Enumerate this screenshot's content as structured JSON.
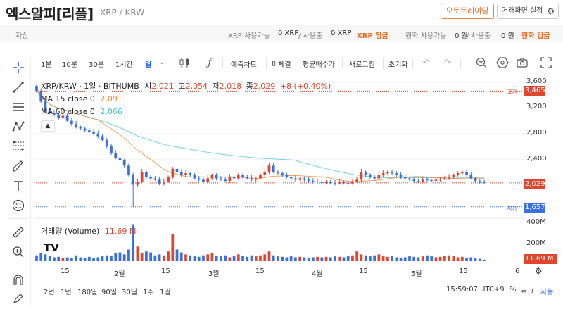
{
  "header": {
    "title": "엑스알피[리플]",
    "subtitle": "XRP / KRW",
    "auto_trade": "오토트레이딩",
    "screen_settings": "거래화면 설정"
  },
  "balance": {
    "label": "자산",
    "xrp_available_label": "XRP 사용가능",
    "xrp_available": "0 XRP",
    "in_use_label": "/ 사용중",
    "xrp_in_use": "0 XRP",
    "xrp_deposit": "XRP 입금",
    "krw_available_label": "원화 사용가능",
    "krw_available": "0 원",
    "krw_in_use_label": "/ 사용중",
    "krw_in_use": "0 원",
    "krw_deposit": "원화 입금"
  },
  "toolbar": {
    "intervals": [
      "1분",
      "10분",
      "30분",
      "1시간",
      "일"
    ],
    "active_interval": "일",
    "buttons": [
      "예측차트",
      "미체결",
      "평균매수가",
      "새로고침",
      "초기화"
    ]
  },
  "legend": {
    "symbol": "XRP/KRW · 1일 · BITHUMB",
    "open_label": "시",
    "open": "2,021",
    "high_label": "고",
    "high": "2,054",
    "low_label": "저",
    "low": "2,018",
    "close_label": "종",
    "close": "2,029",
    "change": "+8 (+0.40%)",
    "ma15_label": "MA 15 close 0",
    "ma15_value": "2,091",
    "ma60_label": "MA 60 close 0",
    "ma60_value": "2,066"
  },
  "volume": {
    "label": "거래량 (Volume)",
    "value": "11.69 M",
    "axis": [
      "400M",
      "200M"
    ],
    "tag": "11.69 M"
  },
  "yaxis": {
    "ticks": [
      "3,600",
      "3,200",
      "2,800",
      "2,400"
    ],
    "high_tag_label": "고가",
    "high_tag": "3,465",
    "current_tag": "2,029",
    "low_tag_label": "저가",
    "low_tag": "1,657"
  },
  "xaxis": {
    "ticks": [
      "15",
      "2월",
      "15",
      "3월",
      "15",
      "4월",
      "15",
      "5월",
      "15",
      "6"
    ]
  },
  "bottom": {
    "ranges": [
      "2년",
      "1년",
      "180일",
      "90일",
      "30일",
      "1주",
      "1일"
    ],
    "time": "15:59:07 UTC+9",
    "percent": "%",
    "log": "로그",
    "auto": "자동"
  },
  "colors": {
    "up": "#e0452d",
    "down": "#3a6fe0",
    "ma15": "#f08a3a",
    "ma60": "#37c0d8",
    "accent": "#2962ff",
    "orange": "#e8671f"
  },
  "chart_data": {
    "type": "candlestick",
    "title": "XRP/KRW · 1일 · BITHUMB",
    "ylim": [
      1500,
      3700
    ],
    "y_ticks": [
      2400,
      2800,
      3200,
      3600
    ],
    "x_ticks": [
      "15",
      "2월",
      "15",
      "3월",
      "15",
      "4월",
      "15",
      "5월",
      "15",
      "6"
    ],
    "closes": [
      3465,
      3300,
      3150,
      3120,
      3100,
      3050,
      3080,
      3000,
      2950,
      2900,
      2880,
      2850,
      2830,
      2800,
      2760,
      2700,
      2600,
      2500,
      2420,
      2380,
      2300,
      2150,
      2000,
      2050,
      2200,
      2120,
      2100,
      2080,
      2020,
      2050,
      2120,
      2250,
      2200,
      2150,
      2180,
      2150,
      2100,
      2080,
      2050,
      2100,
      2150,
      2100,
      2080,
      2060,
      2120,
      2100,
      2150,
      2120,
      2100,
      2080,
      2100,
      2150,
      2200,
      2300,
      2200,
      2180,
      2150,
      2120,
      2100,
      2080,
      2100,
      2080,
      2060,
      2040,
      2050,
      2030,
      2040,
      2030,
      2020,
      2040,
      2030,
      2020,
      2050,
      2080,
      2200,
      2150,
      2120,
      2100,
      2150,
      2180,
      2200,
      2180,
      2150,
      2120,
      2100,
      2080,
      2060,
      2050,
      2080,
      2070,
      2060,
      2080,
      2090,
      2100,
      2120,
      2150,
      2180,
      2200,
      2150,
      2100,
      2060,
      2040,
      2029
    ],
    "volume_millions": [
      60,
      80,
      70,
      50,
      40,
      45,
      30,
      40,
      35,
      60,
      40,
      30,
      45,
      35,
      40,
      50,
      60,
      55,
      80,
      90,
      70,
      120,
      380,
      150,
      80,
      100,
      90,
      60,
      70,
      60,
      100,
      280,
      120,
      90,
      70,
      60,
      50,
      45,
      60,
      70,
      80,
      55,
      50,
      60,
      40,
      50,
      70,
      55,
      45,
      60,
      50,
      60,
      70,
      100,
      60,
      50,
      45,
      40,
      50,
      40,
      45,
      40,
      35,
      40,
      45,
      40,
      45,
      40,
      50,
      45,
      40,
      50,
      60,
      100,
      70,
      60,
      50,
      60,
      70,
      50,
      45,
      55,
      40,
      35,
      40,
      50,
      45,
      40,
      50,
      60,
      50,
      40,
      45,
      55,
      60,
      50,
      40,
      45,
      35,
      40,
      30,
      25,
      11.69
    ],
    "volume_ylim": [
      0,
      420
    ],
    "current": 2029,
    "high_marker": 3465,
    "low_marker": 1657
  }
}
